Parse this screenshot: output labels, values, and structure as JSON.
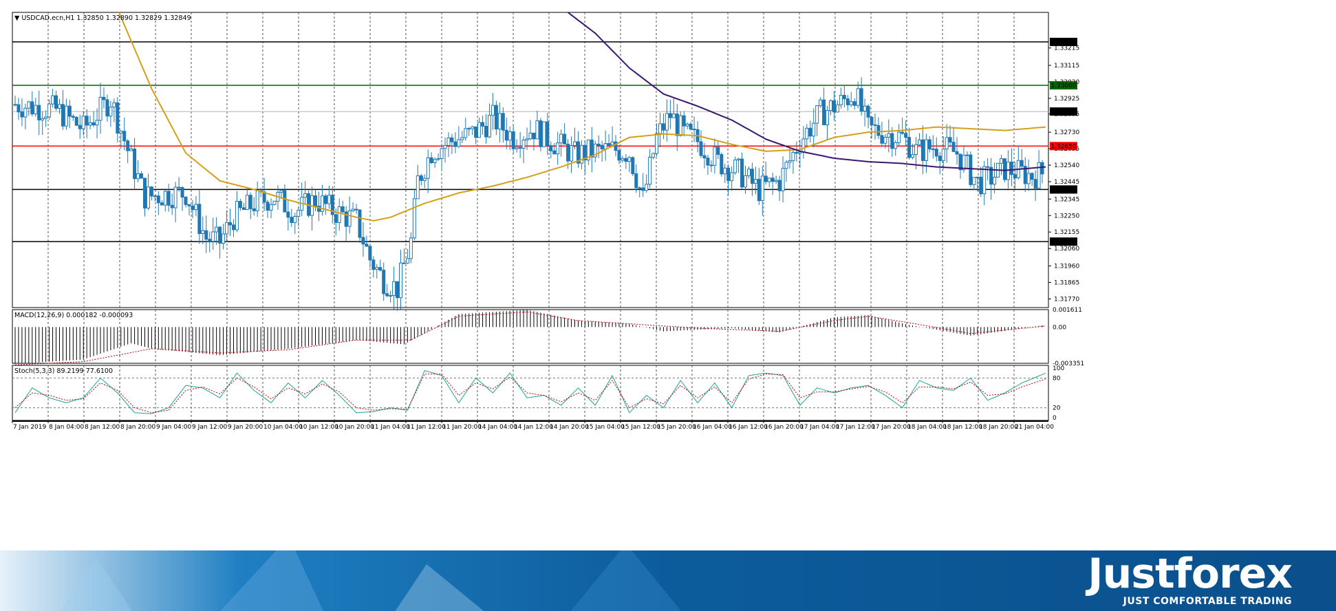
{
  "main_header": "USDCAD.ecn,H1  1.32850 1.32890 1.32829 1.32849",
  "macd_header": "MACD(12,26,9) 0.000182 -0.000093",
  "stoch_header": "Stoch(5,3,3) 89.2199 77.6100",
  "colors": {
    "candle": "#1f78b4",
    "ma_fast": "#d4a017",
    "ma_slow": "#3b1670",
    "level_green": "#006400",
    "level_red": "#ff0000",
    "level_black": "#000000",
    "stoch_main": "#1aa39a",
    "stoch_signal": "#c00000"
  },
  "chart_data": [
    {
      "type": "candlestick",
      "symbol": "USDCAD.ecn",
      "timeframe": "H1",
      "ohlc_current": {
        "open": 1.3285,
        "high": 1.3289,
        "low": 1.32829,
        "close": 1.32849
      },
      "ylim": [
        1.3172,
        1.3342
      ],
      "y_ticks": [
        "1.33215",
        "1.33115",
        "1.33020",
        "1.32925",
        "1.32835",
        "1.32730",
        "1.32635",
        "1.32540",
        "1.32445",
        "1.32345",
        "1.32250",
        "1.32155",
        "1.32060",
        "1.31960",
        "1.31865",
        "1.31770"
      ],
      "x_ticks": [
        "7 Jan 2019",
        "8 Jan 04:00",
        "8 Jan 12:00",
        "8 Jan 20:00",
        "9 Jan 04:00",
        "9 Jan 12:00",
        "9 Jan 20:00",
        "10 Jan 04:00",
        "10 Jan 12:00",
        "10 Jan 20:00",
        "11 Jan 04:00",
        "11 Jan 12:00",
        "11 Jan 20:00",
        "14 Jan 04:00",
        "14 Jan 12:00",
        "14 Jan 20:00",
        "15 Jan 04:00",
        "15 Jan 12:00",
        "15 Jan 20:00",
        "16 Jan 04:00",
        "16 Jan 12:00",
        "16 Jan 20:00",
        "17 Jan 04:00",
        "17 Jan 12:00",
        "17 Jan 20:00",
        "18 Jan 04:00",
        "18 Jan 12:00",
        "18 Jan 20:00",
        "21 Jan 04:00"
      ],
      "levels": [
        {
          "label": "1.33250",
          "value": 1.3325,
          "color": "level_black"
        },
        {
          "label": "1.33000",
          "value": 1.33,
          "color": "level_green"
        },
        {
          "label": "1.32849",
          "value": 1.32849,
          "color": "bid"
        },
        {
          "label": "1.32650",
          "value": 1.3265,
          "color": "level_red"
        },
        {
          "label": "1.32400",
          "value": 1.324,
          "color": "level_black"
        },
        {
          "label": "1.32100",
          "value": 1.321,
          "color": "level_black"
        }
      ],
      "close_path": [
        [
          0,
          1.3289
        ],
        [
          12,
          1.3286
        ],
        [
          20,
          1.3275
        ],
        [
          28,
          1.3292
        ],
        [
          34,
          1.3257
        ],
        [
          38,
          1.3236
        ],
        [
          44,
          1.3237
        ],
        [
          50,
          1.3238
        ],
        [
          56,
          1.3212
        ],
        [
          60,
          1.321
        ],
        [
          64,
          1.3224
        ],
        [
          70,
          1.3232
        ],
        [
          76,
          1.3236
        ],
        [
          82,
          1.3227
        ],
        [
          88,
          1.3234
        ],
        [
          94,
          1.3227
        ],
        [
          100,
          1.3222
        ],
        [
          104,
          1.32
        ],
        [
          108,
          1.3188
        ],
        [
          112,
          1.3183
        ],
        [
          116,
          1.321
        ],
        [
          118,
          1.3245
        ],
        [
          122,
          1.3262
        ],
        [
          128,
          1.3268
        ],
        [
          134,
          1.3272
        ],
        [
          140,
          1.3281
        ],
        [
          146,
          1.327
        ],
        [
          152,
          1.3275
        ],
        [
          158,
          1.3267
        ],
        [
          164,
          1.326
        ],
        [
          170,
          1.3262
        ],
        [
          176,
          1.3263
        ],
        [
          180,
          1.3261
        ],
        [
          184,
          1.3234
        ],
        [
          188,
          1.327
        ],
        [
          192,
          1.3283
        ],
        [
          196,
          1.3272
        ],
        [
          200,
          1.3268
        ],
        [
          206,
          1.3256
        ],
        [
          212,
          1.325
        ],
        [
          218,
          1.324
        ],
        [
          224,
          1.3245
        ],
        [
          230,
          1.3268
        ],
        [
          236,
          1.3284
        ],
        [
          242,
          1.329
        ],
        [
          246,
          1.3296
        ],
        [
          250,
          1.3275
        ],
        [
          256,
          1.3272
        ],
        [
          260,
          1.327
        ],
        [
          264,
          1.3262
        ],
        [
          270,
          1.3265
        ],
        [
          276,
          1.3261
        ],
        [
          282,
          1.3244
        ],
        [
          286,
          1.3247
        ],
        [
          290,
          1.3252
        ],
        [
          294,
          1.325
        ],
        [
          298,
          1.3248
        ],
        [
          302,
          1.325
        ]
      ],
      "ma_fast_path": [
        [
          30,
          1.3344
        ],
        [
          40,
          1.3298
        ],
        [
          50,
          1.3261
        ],
        [
          60,
          1.3245
        ],
        [
          70,
          1.324
        ],
        [
          80,
          1.3234
        ],
        [
          90,
          1.3229
        ],
        [
          100,
          1.3224
        ],
        [
          105,
          1.3222
        ],
        [
          110,
          1.3224
        ],
        [
          120,
          1.3232
        ],
        [
          130,
          1.3238
        ],
        [
          140,
          1.3242
        ],
        [
          150,
          1.3247
        ],
        [
          160,
          1.3253
        ],
        [
          170,
          1.326
        ],
        [
          180,
          1.327
        ],
        [
          190,
          1.3272
        ],
        [
          200,
          1.3271
        ],
        [
          210,
          1.3266
        ],
        [
          220,
          1.3262
        ],
        [
          230,
          1.3263
        ],
        [
          240,
          1.327
        ],
        [
          250,
          1.3273
        ],
        [
          260,
          1.3274
        ],
        [
          270,
          1.3276
        ],
        [
          280,
          1.3275
        ],
        [
          290,
          1.3274
        ],
        [
          302,
          1.3276
        ]
      ],
      "ma_slow_path": [
        [
          160,
          1.3345
        ],
        [
          170,
          1.333
        ],
        [
          180,
          1.331
        ],
        [
          190,
          1.3295
        ],
        [
          200,
          1.3288
        ],
        [
          210,
          1.328
        ],
        [
          220,
          1.3269
        ],
        [
          230,
          1.3262
        ],
        [
          240,
          1.3258
        ],
        [
          250,
          1.3256
        ],
        [
          260,
          1.3255
        ],
        [
          270,
          1.3253
        ],
        [
          280,
          1.3252
        ],
        [
          290,
          1.3251
        ],
        [
          302,
          1.3253
        ]
      ]
    },
    {
      "type": "bar",
      "name": "MACD(12,26,9)",
      "ylim": [
        -0.003351,
        0.001611
      ],
      "y_ticks": [
        "0.001611",
        "0.00",
        "-0.003351"
      ],
      "hist_path": [
        [
          0,
          -0.0034
        ],
        [
          20,
          -0.003
        ],
        [
          34,
          -0.0015
        ],
        [
          40,
          -0.002
        ],
        [
          60,
          -0.0026
        ],
        [
          80,
          -0.002
        ],
        [
          100,
          -0.0012
        ],
        [
          114,
          -0.0016
        ],
        [
          130,
          0.0012
        ],
        [
          150,
          0.0016
        ],
        [
          165,
          0.0006
        ],
        [
          180,
          0.0003
        ],
        [
          190,
          -0.0004
        ],
        [
          210,
          -0.0001
        ],
        [
          224,
          -0.0005
        ],
        [
          240,
          0.0009
        ],
        [
          250,
          0.0011
        ],
        [
          262,
          0.0002
        ],
        [
          280,
          -0.0008
        ],
        [
          302,
          0.0002
        ]
      ],
      "signal_path": [
        [
          0,
          -0.0035
        ],
        [
          20,
          -0.0032
        ],
        [
          40,
          -0.002
        ],
        [
          60,
          -0.0024
        ],
        [
          80,
          -0.0021
        ],
        [
          100,
          -0.0012
        ],
        [
          116,
          -0.0012
        ],
        [
          130,
          0.001
        ],
        [
          150,
          0.0014
        ],
        [
          165,
          0.0006
        ],
        [
          180,
          0.0003
        ],
        [
          200,
          -0.0001
        ],
        [
          224,
          -0.0004
        ],
        [
          240,
          0.0006
        ],
        [
          250,
          0.001
        ],
        [
          262,
          0.0004
        ],
        [
          280,
          -0.0006
        ],
        [
          302,
          0.0001
        ]
      ]
    },
    {
      "type": "line",
      "name": "Stoch(5,3,3)",
      "ylim": [
        0,
        100
      ],
      "y_ticks": [
        "100",
        "80",
        "20",
        "0"
      ],
      "main_path": [
        [
          0,
          10
        ],
        [
          5,
          60
        ],
        [
          10,
          40
        ],
        [
          15,
          30
        ],
        [
          20,
          40
        ],
        [
          25,
          80
        ],
        [
          30,
          50
        ],
        [
          35,
          10
        ],
        [
          40,
          8
        ],
        [
          45,
          20
        ],
        [
          50,
          65
        ],
        [
          55,
          60
        ],
        [
          60,
          40
        ],
        [
          65,
          90
        ],
        [
          70,
          55
        ],
        [
          75,
          30
        ],
        [
          80,
          70
        ],
        [
          85,
          40
        ],
        [
          90,
          75
        ],
        [
          95,
          45
        ],
        [
          100,
          10
        ],
        [
          105,
          12
        ],
        [
          110,
          20
        ],
        [
          115,
          15
        ],
        [
          120,
          95
        ],
        [
          125,
          85
        ],
        [
          130,
          30
        ],
        [
          135,
          80
        ],
        [
          140,
          50
        ],
        [
          145,
          90
        ],
        [
          150,
          40
        ],
        [
          155,
          45
        ],
        [
          160,
          25
        ],
        [
          165,
          60
        ],
        [
          170,
          25
        ],
        [
          175,
          85
        ],
        [
          180,
          10
        ],
        [
          185,
          45
        ],
        [
          190,
          20
        ],
        [
          195,
          75
        ],
        [
          200,
          30
        ],
        [
          205,
          70
        ],
        [
          210,
          20
        ],
        [
          215,
          85
        ],
        [
          220,
          90
        ],
        [
          225,
          85
        ],
        [
          230,
          25
        ],
        [
          235,
          60
        ],
        [
          240,
          50
        ],
        [
          245,
          60
        ],
        [
          250,
          65
        ],
        [
          255,
          45
        ],
        [
          260,
          20
        ],
        [
          265,
          75
        ],
        [
          270,
          60
        ],
        [
          275,
          55
        ],
        [
          280,
          80
        ],
        [
          285,
          35
        ],
        [
          290,
          50
        ],
        [
          295,
          70
        ],
        [
          302,
          90
        ]
      ],
      "signal_path": [
        [
          0,
          20
        ],
        [
          5,
          50
        ],
        [
          10,
          45
        ],
        [
          15,
          35
        ],
        [
          20,
          38
        ],
        [
          25,
          70
        ],
        [
          30,
          55
        ],
        [
          35,
          20
        ],
        [
          40,
          10
        ],
        [
          45,
          15
        ],
        [
          50,
          55
        ],
        [
          55,
          62
        ],
        [
          60,
          48
        ],
        [
          65,
          80
        ],
        [
          70,
          62
        ],
        [
          75,
          38
        ],
        [
          80,
          60
        ],
        [
          85,
          48
        ],
        [
          90,
          68
        ],
        [
          95,
          52
        ],
        [
          100,
          20
        ],
        [
          105,
          15
        ],
        [
          110,
          18
        ],
        [
          115,
          17
        ],
        [
          120,
          88
        ],
        [
          125,
          88
        ],
        [
          130,
          45
        ],
        [
          135,
          70
        ],
        [
          140,
          58
        ],
        [
          145,
          82
        ],
        [
          150,
          50
        ],
        [
          155,
          45
        ],
        [
          160,
          32
        ],
        [
          165,
          50
        ],
        [
          170,
          35
        ],
        [
          175,
          75
        ],
        [
          180,
          20
        ],
        [
          185,
          38
        ],
        [
          190,
          28
        ],
        [
          195,
          65
        ],
        [
          200,
          40
        ],
        [
          205,
          62
        ],
        [
          210,
          30
        ],
        [
          215,
          78
        ],
        [
          220,
          88
        ],
        [
          225,
          87
        ],
        [
          230,
          40
        ],
        [
          235,
          52
        ],
        [
          240,
          52
        ],
        [
          245,
          58
        ],
        [
          250,
          63
        ],
        [
          255,
          52
        ],
        [
          260,
          30
        ],
        [
          265,
          62
        ],
        [
          270,
          62
        ],
        [
          275,
          58
        ],
        [
          280,
          72
        ],
        [
          285,
          45
        ],
        [
          290,
          48
        ],
        [
          295,
          62
        ],
        [
          302,
          78
        ]
      ]
    }
  ],
  "banner": {
    "logo": "Justforex",
    "tagline": "JUST COMFORTABLE TRADING"
  }
}
